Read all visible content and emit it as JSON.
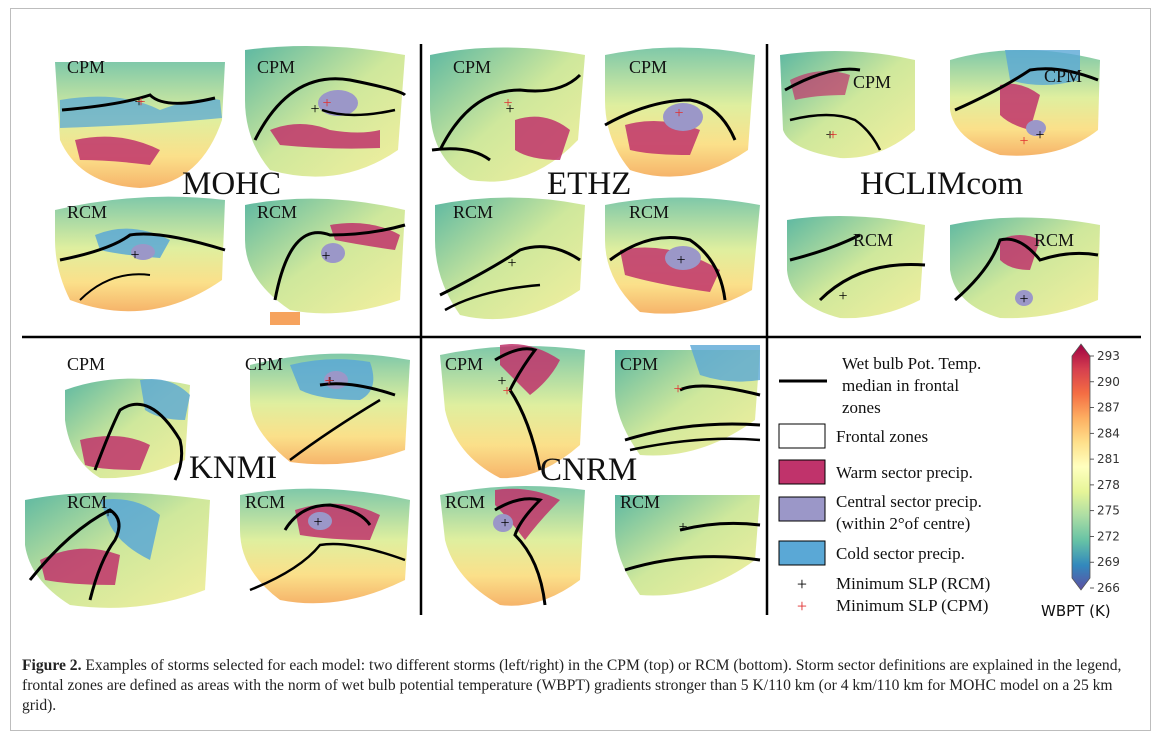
{
  "figure": {
    "panel_labels": {
      "cpm": "CPM",
      "rcm": "RCM"
    },
    "models": [
      "MOHC",
      "ETHZ",
      "HCLIMcom",
      "KNMI",
      "CNRM"
    ],
    "legend": {
      "line_label": "Wet bulb Pot. Temp. median in frontal zones",
      "line_label_lines": [
        "Wet bulb Pot. Temp.",
        "median in frontal",
        "zones"
      ],
      "frontal": "Frontal zones",
      "warm": "Warm sector precip.",
      "central_lines": [
        "Central sector precip.",
        "(within 2°of centre)"
      ],
      "cold": "Cold sector precip.",
      "min_rcm": "Minimum SLP (RCM)",
      "min_cpm": "Minimum SLP (CPM)",
      "colors": {
        "frontal": "#ffffff",
        "warm": "#c0336b",
        "central": "#9b97c8",
        "cold": "#5aa8d6",
        "min_rcm": "#000000",
        "min_cpm": "#e03030"
      }
    },
    "colorbar": {
      "title": "WBPT (K)",
      "ticks": [
        "293",
        "290",
        "287",
        "284",
        "281",
        "278",
        "275",
        "272",
        "269",
        "266"
      ],
      "colors": [
        "#9e0142",
        "#d53e4f",
        "#f46d43",
        "#fdae61",
        "#fee08b",
        "#ffffbf",
        "#e6f598",
        "#abdda4",
        "#66c2a5",
        "#3288bd",
        "#5e4fa2"
      ]
    }
  },
  "caption": {
    "label": "Figure 2.",
    "text": " Examples of storms selected for each model: two different storms (left/right) in the CPM (top) or RCM (bottom). Storm sector definitions are explained in the legend, frontal zones are defined as areas with the norm of wet bulb potential temperature (WBPT) gradients stronger than 5 K/110 km (or 4 km/110 km for MOHC model on a 25 km grid)."
  }
}
